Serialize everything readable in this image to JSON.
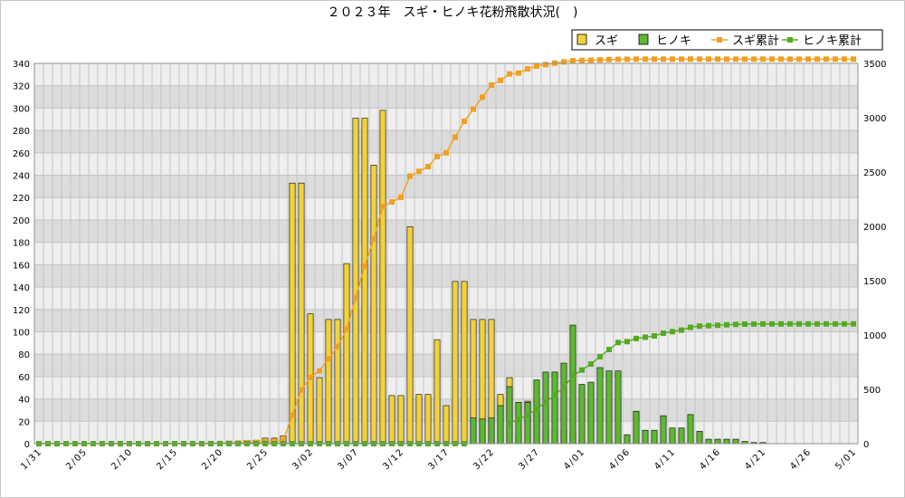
{
  "chart_data": {
    "type": "bar",
    "title": "２０２３年　スギ・ヒノキ花粉飛散状況(　)",
    "legend": {
      "placement": "top-right",
      "items": [
        {
          "label": "スギ",
          "kind": "bar",
          "color": "#f2d23c",
          "stroke": "#000000"
        },
        {
          "label": "ヒノキ",
          "kind": "bar",
          "color": "#5fb832",
          "stroke": "#000000"
        },
        {
          "label": "スギ累計",
          "kind": "line",
          "color": "#f0a020"
        },
        {
          "label": "ヒノキ累計",
          "kind": "line",
          "color": "#55aa22"
        }
      ]
    },
    "x_tick_labels": [
      "1/31",
      "2/05",
      "2/10",
      "2/15",
      "2/20",
      "2/25",
      "3/02",
      "3/07",
      "3/12",
      "3/17",
      "3/22",
      "3/27",
      "4/01",
      "4/06",
      "4/11",
      "4/16",
      "4/21",
      "4/26",
      "5/01"
    ],
    "y_left": {
      "min": 0,
      "max": 340,
      "ticks": [
        0,
        20,
        40,
        60,
        80,
        100,
        120,
        140,
        160,
        180,
        200,
        220,
        240,
        260,
        280,
        300,
        320,
        340
      ]
    },
    "y_right": {
      "min": 0,
      "max": 3500,
      "ticks": [
        0,
        500,
        1000,
        1500,
        2000,
        2500,
        3000,
        3500
      ]
    },
    "grid": true,
    "series": [
      {
        "name": "スギ",
        "type": "bar",
        "axis": "left",
        "color": "#f2d23c",
        "values": [
          0,
          0,
          0,
          0,
          0,
          0,
          0,
          0,
          0,
          0,
          0,
          0,
          0,
          0,
          0,
          0,
          0,
          0,
          0,
          1,
          1,
          2,
          2,
          3,
          3,
          5,
          5,
          7,
          233,
          233,
          116,
          59,
          111,
          111,
          161,
          291,
          291,
          249,
          298,
          43,
          43,
          194,
          44,
          44,
          93,
          34,
          145,
          145,
          111,
          111,
          111,
          44,
          59,
          8,
          38,
          27,
          13,
          13,
          12,
          10,
          3,
          2,
          3,
          3,
          2,
          1,
          1,
          0,
          0,
          0,
          0,
          0,
          0,
          0,
          0,
          0,
          0,
          0,
          0,
          0,
          0,
          0,
          0,
          0,
          0,
          0,
          0,
          0,
          0,
          0,
          0
        ]
      },
      {
        "name": "ヒノキ",
        "type": "bar",
        "axis": "left",
        "color": "#5fb832",
        "values": [
          0,
          0,
          0,
          0,
          0,
          0,
          0,
          0,
          0,
          0,
          0,
          0,
          0,
          0,
          0,
          0,
          0,
          0,
          0,
          0,
          0,
          0,
          0,
          0,
          0,
          0,
          0,
          0,
          0,
          0,
          0,
          0,
          0,
          0,
          0,
          0,
          0,
          0,
          0,
          0,
          0,
          0,
          0,
          0,
          0,
          0,
          0,
          0,
          23,
          22,
          23,
          34,
          51,
          37,
          37,
          57,
          64,
          64,
          72,
          106,
          53,
          55,
          68,
          65,
          65,
          8,
          29,
          12,
          12,
          25,
          14,
          14,
          26,
          11,
          4,
          4,
          4,
          4,
          2,
          1,
          1,
          0,
          0,
          0,
          0,
          0,
          0,
          0,
          0,
          0,
          0
        ]
      },
      {
        "name": "スギ累計",
        "type": "line",
        "axis": "right",
        "color": "#f0a020",
        "values": [
          0,
          0,
          0,
          0,
          0,
          0,
          0,
          0,
          0,
          0,
          0,
          0,
          0,
          0,
          0,
          0,
          0,
          0,
          0,
          1,
          2,
          4,
          6,
          9,
          12,
          17,
          22,
          29,
          262,
          495,
          611,
          670,
          781,
          892,
          1053,
          1344,
          1635,
          1884,
          2182,
          2225,
          2268,
          2462,
          2506,
          2550,
          2643,
          2677,
          2822,
          2967,
          3078,
          3189,
          3300,
          3344,
          3403,
          3411,
          3449,
          3476,
          3489,
          3502,
          3514,
          3524,
          3527,
          3529,
          3532,
          3535,
          3537,
          3538,
          3539,
          3539,
          3539,
          3539,
          3539,
          3539,
          3539,
          3539,
          3539,
          3539,
          3539,
          3539,
          3539,
          3539,
          3539,
          3539,
          3539,
          3539,
          3539,
          3539,
          3539,
          3539,
          3539,
          3539,
          3539
        ]
      },
      {
        "name": "ヒノキ累計",
        "type": "line",
        "axis": "right",
        "color": "#55aa22",
        "values": [
          0,
          0,
          0,
          0,
          0,
          0,
          0,
          0,
          0,
          0,
          0,
          0,
          0,
          0,
          0,
          0,
          0,
          0,
          0,
          0,
          0,
          0,
          0,
          0,
          0,
          0,
          0,
          0,
          0,
          0,
          0,
          0,
          0,
          0,
          0,
          0,
          0,
          0,
          0,
          0,
          0,
          0,
          0,
          0,
          0,
          0,
          0,
          0,
          null,
          null,
          null,
          null,
          188,
          225,
          262,
          319,
          383,
          447,
          519,
          625,
          678,
          733,
          801,
          866,
          931,
          939,
          968,
          980,
          992,
          1017,
          1031,
          1045,
          1071,
          1082,
          1086,
          1090,
          1094,
          1098,
          1100,
          1101,
          1102,
          1102,
          1102,
          1102,
          1102,
          1102,
          1102,
          1102,
          1102,
          1102,
          1102
        ]
      }
    ]
  }
}
